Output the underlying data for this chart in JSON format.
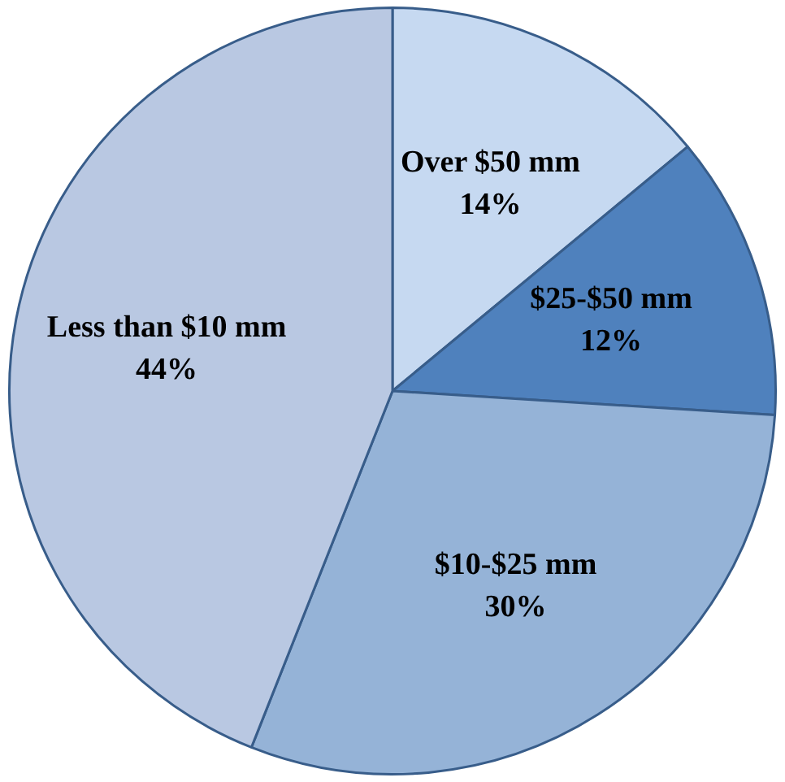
{
  "chart_data": {
    "type": "pie",
    "categories": [
      "Over $50 mm",
      "$25-$50 mm",
      "$10-$25 mm",
      "Less than $10 mm"
    ],
    "values": [
      14,
      12,
      30,
      44
    ],
    "colors": [
      "#c6d9f1",
      "#4f81bd",
      "#95b3d7",
      "#b9c8e2"
    ],
    "value_labels": [
      "14%",
      "12%",
      "30%",
      "44%"
    ]
  }
}
